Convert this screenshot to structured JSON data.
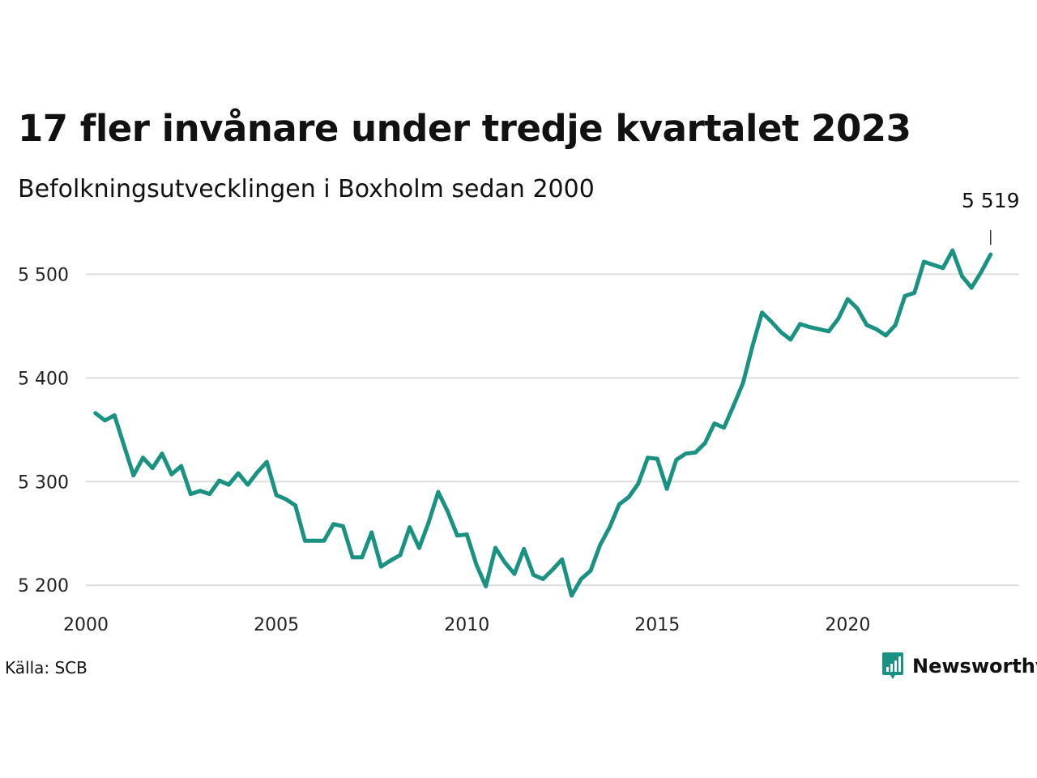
{
  "title": "17 fler invånare under tredje kvartalet 2023",
  "subtitle": "Befolkningsutvecklingen i Boxholm sedan 2000",
  "source": "Källa: SCB",
  "brand": {
    "name": "Newsworthy",
    "icon": "newsworthy-logo-icon"
  },
  "colors": {
    "line": "#1a9282",
    "grid": "#dddddd",
    "text": "#111111",
    "brand": "#1a9282"
  },
  "chart_data": {
    "type": "line",
    "title": "17 fler invånare under tredje kvartalet 2023",
    "subtitle": "Befolkningsutvecklingen i Boxholm sedan 2000",
    "xlabel": "",
    "ylabel": "",
    "xlim": [
      2000,
      2024.5
    ],
    "ylim": [
      5190,
      5530
    ],
    "x_ticks": [
      {
        "value": 2000,
        "label": "2000"
      },
      {
        "value": 2005,
        "label": "2005"
      },
      {
        "value": 2010,
        "label": "2010"
      },
      {
        "value": 2015,
        "label": "2015"
      },
      {
        "value": 2020,
        "label": "2020"
      }
    ],
    "y_ticks": [
      {
        "value": 5200,
        "label": "5 200"
      },
      {
        "value": 5300,
        "label": "5 300"
      },
      {
        "value": 5400,
        "label": "5 400"
      },
      {
        "value": 5500,
        "label": "5 500"
      }
    ],
    "grid": true,
    "legend": "none",
    "annotation": {
      "label": "5 519",
      "x": 2023.75,
      "y": 5519
    },
    "series": [
      {
        "x": [
          2000.25,
          2000.5,
          2000.75,
          2001,
          2001.25,
          2001.5,
          2001.75,
          2002,
          2002.25,
          2002.5,
          2002.75,
          2003,
          2003.25,
          2003.5,
          2003.75,
          2004,
          2004.25,
          2004.5,
          2004.75,
          2005,
          2005.25,
          2005.5,
          2005.75,
          2006,
          2006.25,
          2006.5,
          2006.75,
          2007,
          2007.25,
          2007.5,
          2007.75,
          2008,
          2008.25,
          2008.5,
          2008.75,
          2009,
          2009.25,
          2009.5,
          2009.75,
          2010,
          2010.25,
          2010.5,
          2010.75,
          2011,
          2011.25,
          2011.5,
          2011.75,
          2012,
          2012.25,
          2012.5,
          2012.75,
          2013,
          2013.25,
          2013.5,
          2013.75,
          2014,
          2014.25,
          2014.5,
          2014.75,
          2015,
          2015.25,
          2015.5,
          2015.75,
          2016,
          2016.25,
          2016.5,
          2016.75,
          2017,
          2017.25,
          2017.5,
          2017.75,
          2018,
          2018.25,
          2018.5,
          2018.75,
          2019,
          2019.25,
          2019.5,
          2019.75,
          2020,
          2020.25,
          2020.5,
          2020.75,
          2021,
          2021.25,
          2021.5,
          2021.75,
          2022,
          2022.25,
          2022.5,
          2022.75,
          2023,
          2023.25,
          2023.5,
          2023.75
        ],
        "values": [
          5366,
          5359,
          5364,
          5335,
          5306,
          5323,
          5313,
          5327,
          5307,
          5315,
          5288,
          5291,
          5288,
          5301,
          5297,
          5308,
          5297,
          5309,
          5319,
          5287,
          5283,
          5277,
          5243,
          5243,
          5243,
          5259,
          5257,
          5227,
          5227,
          5251,
          5218,
          5224,
          5229,
          5256,
          5236,
          5261,
          5290,
          5271,
          5248,
          5249,
          5220,
          5199,
          5236,
          5222,
          5211,
          5235,
          5210,
          5206,
          5215,
          5225,
          5190,
          5206,
          5214,
          5239,
          5256,
          5278,
          5285,
          5298,
          5323,
          5322,
          5293,
          5321,
          5327,
          5328,
          5337,
          5356,
          5352,
          5373,
          5395,
          5431,
          5463,
          5454,
          5444,
          5437,
          5452,
          5449,
          5447,
          5445,
          5457,
          5476,
          5467,
          5451,
          5447,
          5441,
          5451,
          5479,
          5482,
          5512,
          5509,
          5506,
          5523,
          5498,
          5487,
          5502,
          5519
        ]
      }
    ]
  }
}
